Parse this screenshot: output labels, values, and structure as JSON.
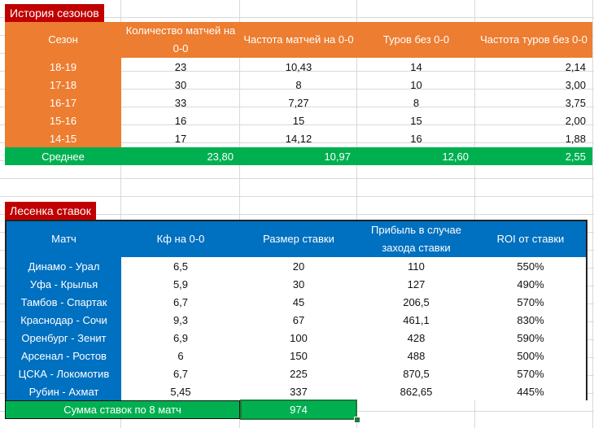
{
  "seasons": {
    "title": "История сезонов",
    "headers": [
      "Сезон",
      "Количество матчей на 0-0",
      "Частота матчей на 0-0",
      "Туров без 0-0",
      "Частота туров без 0-0"
    ],
    "rows": [
      [
        "18-19",
        "23",
        "10,43",
        "14",
        "2,14"
      ],
      [
        "17-18",
        "30",
        "8",
        "10",
        "3,00"
      ],
      [
        "16-17",
        "33",
        "7,27",
        "8",
        "3,75"
      ],
      [
        "15-16",
        "16",
        "15",
        "15",
        "2,00"
      ],
      [
        "14-15",
        "17",
        "14,12",
        "16",
        "1,88"
      ]
    ],
    "avg_label": "Среднее",
    "avg_values": [
      "23,80",
      "10,97",
      "12,60",
      "2,55"
    ]
  },
  "ladder": {
    "title": "Лесенка ставок",
    "headers": [
      "Матч",
      "Кф на 0-0",
      "Размер ставки",
      "Прибыль в случае захода ставки",
      "ROI от ставки"
    ],
    "rows": [
      [
        "Динамо - Урал",
        "6,5",
        "20",
        "110",
        "550%"
      ],
      [
        "Уфа - Крылья",
        "5,9",
        "30",
        "127",
        "490%"
      ],
      [
        "Тамбов - Спартак",
        "6,7",
        "45",
        "206,5",
        "570%"
      ],
      [
        "Краснодар - Сочи",
        "9,3",
        "67",
        "461,1",
        "830%"
      ],
      [
        "Оренбург - Зенит",
        "6,9",
        "100",
        "428",
        "590%"
      ],
      [
        "Арсенал - Ростов",
        "6",
        "150",
        "488",
        "500%"
      ],
      [
        "ЦСКА - Локомотив",
        "6,7",
        "225",
        "870,5",
        "570%"
      ],
      [
        "Рубин - Ахмат",
        "5,45",
        "337",
        "862,65",
        "445%"
      ]
    ],
    "sum_label": "Сумма ставок по 8 матч",
    "sum_value": "974"
  },
  "colors": {
    "title_red": "#c00000",
    "orange": "#ed7d31",
    "green": "#00b050",
    "blue": "#0070c0"
  }
}
